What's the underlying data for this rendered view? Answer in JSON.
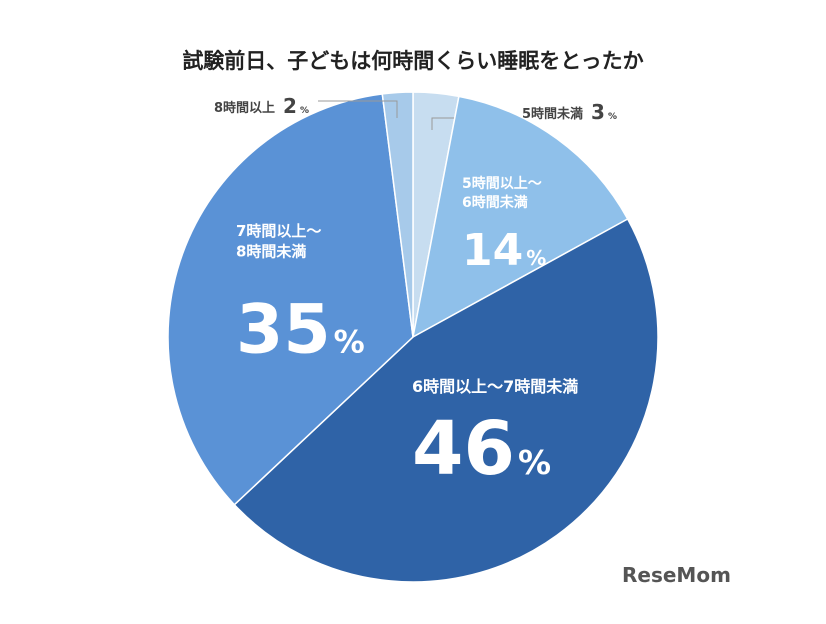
{
  "chart_data": {
    "type": "pie",
    "title": "試験前日、子どもは何時間くらい睡眠をとったか",
    "categories": [
      "5時間未満",
      "5時間以上〜6時間未満",
      "6時間以上〜7時間未満",
      "7時間以上〜8時間未満",
      "8時間以上"
    ],
    "values": [
      3,
      14,
      46,
      35,
      2
    ],
    "unit": "%",
    "colors": [
      "#c7ddf0",
      "#8fc0ea",
      "#2f63a7",
      "#5a92d6",
      "#a7caea"
    ],
    "logo": "ReseMom"
  }
}
